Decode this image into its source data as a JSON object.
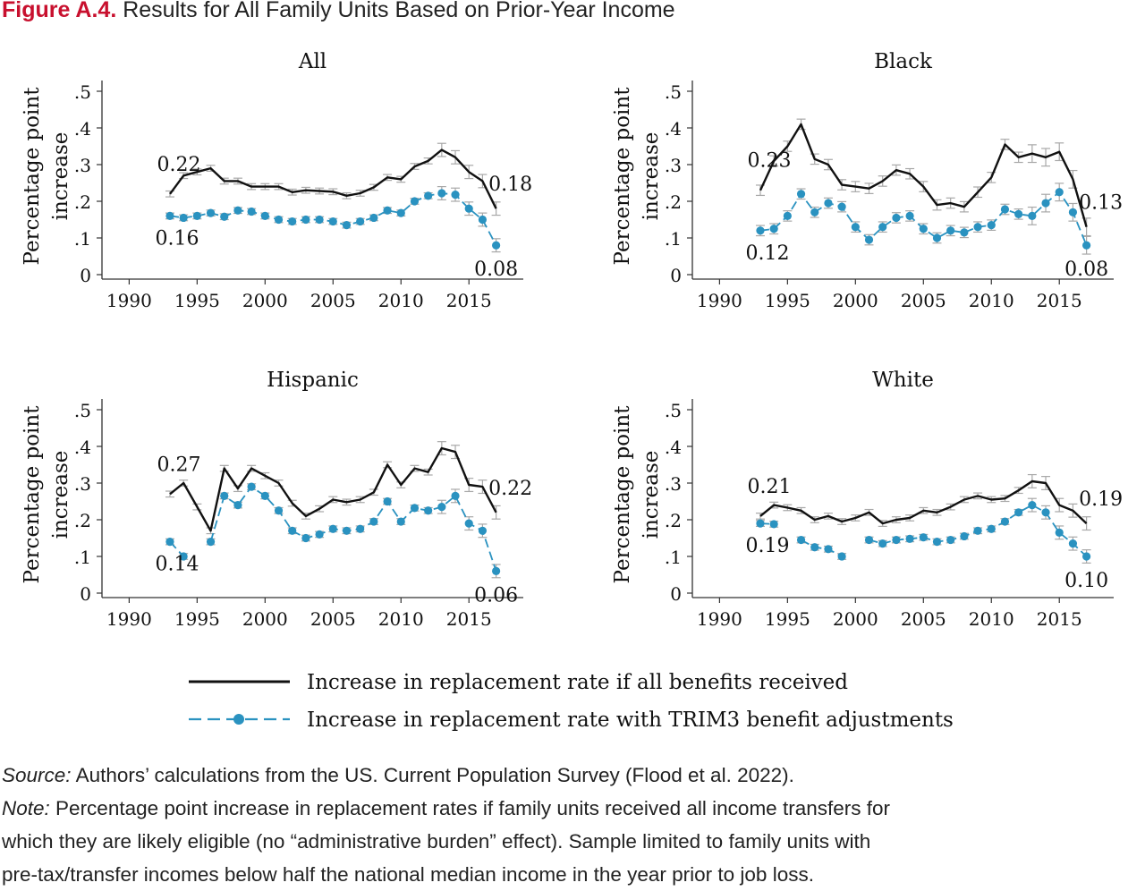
{
  "figure": {
    "label": "Figure A.4.",
    "title": "Results for All Family Units Based on Prior-Year Income"
  },
  "source": {
    "label": "Source:",
    "text": "Authors’ calculations from the US. Current Population Survey (Flood et al. 2022)."
  },
  "note": {
    "label": "Note:",
    "lines": [
      "Percentage point increase in replacement rates if family units received all income transfers for",
      "which they are likely eligible (no “administrative burden” effect). Sample limited to family units with",
      "pre-tax/transfer incomes below half the national median income in the year prior to job loss."
    ]
  },
  "colors": {
    "line_all": "#111111",
    "line_trim3": "#2a92c0",
    "error_bar": "#a8a8a8",
    "accent": "#c8102e"
  },
  "legend": [
    {
      "name": "Increase in replacement rate if all benefits received",
      "style": "solid-black"
    },
    {
      "name": "Increase in replacement rate with TRIM3 benefit adjustments",
      "style": "dashed-blue-dots"
    }
  ],
  "chart_data": [
    {
      "type": "line",
      "title": "All",
      "ylabel": "Percentage point increase",
      "xlabel": "",
      "xlim": [
        1988,
        2019
      ],
      "ylim": [
        0,
        0.5
      ],
      "xticks": [
        "1990",
        "1995",
        "2000",
        "2005",
        "2010",
        "2015"
      ],
      "yticks": [
        "0",
        ".1",
        ".2",
        ".3",
        ".4",
        ".5"
      ],
      "x": [
        1993,
        1994,
        1995,
        1996,
        1997,
        1998,
        1999,
        2000,
        2001,
        2002,
        2003,
        2004,
        2005,
        2006,
        2007,
        2008,
        2009,
        2010,
        2011,
        2012,
        2013,
        2014,
        2015,
        2016,
        2017
      ],
      "series": [
        {
          "values": [
            0.22,
            0.27,
            0.28,
            0.29,
            0.255,
            0.255,
            0.24,
            0.24,
            0.24,
            0.225,
            0.23,
            0.228,
            0.226,
            0.215,
            0.222,
            0.238,
            0.265,
            0.26,
            0.295,
            0.31,
            0.34,
            0.32,
            0.28,
            0.255,
            0.18
          ]
        },
        {
          "values": [
            0.16,
            0.155,
            0.16,
            0.168,
            0.158,
            0.175,
            0.172,
            0.16,
            0.15,
            0.145,
            0.15,
            0.15,
            0.145,
            0.135,
            0.145,
            0.155,
            0.175,
            0.168,
            0.2,
            0.215,
            0.222,
            0.218,
            0.18,
            0.15,
            0.08
          ]
        }
      ],
      "annotations": [
        {
          "text": "0.22",
          "x": 1993,
          "y": 0.22
        },
        {
          "text": "0.16",
          "x": 1993,
          "y": 0.16
        },
        {
          "text": "0.18",
          "x": 2017,
          "y": 0.18
        },
        {
          "text": "0.08",
          "x": 2017,
          "y": 0.08
        }
      ]
    },
    {
      "type": "line",
      "title": "Black",
      "ylabel": "Percentage point increase",
      "xlabel": "",
      "xlim": [
        1988,
        2019
      ],
      "ylim": [
        0,
        0.5
      ],
      "xticks": [
        "1990",
        "1995",
        "2000",
        "2005",
        "2010",
        "2015"
      ],
      "yticks": [
        "0",
        ".1",
        ".2",
        ".3",
        ".4",
        ".5"
      ],
      "x": [
        1993,
        1994,
        1995,
        1996,
        1997,
        1998,
        1999,
        2000,
        2001,
        2002,
        2003,
        2004,
        2005,
        2006,
        2007,
        2008,
        2009,
        2010,
        2011,
        2012,
        2013,
        2014,
        2015,
        2016,
        2017
      ],
      "series": [
        {
          "values": [
            0.23,
            0.31,
            0.35,
            0.41,
            0.315,
            0.3,
            0.245,
            0.24,
            0.235,
            0.255,
            0.285,
            0.275,
            0.24,
            0.19,
            0.195,
            0.185,
            0.225,
            0.265,
            0.355,
            0.32,
            0.33,
            0.32,
            0.335,
            0.26,
            0.13
          ]
        },
        {
          "values": [
            0.12,
            0.125,
            0.16,
            0.22,
            0.17,
            0.195,
            0.185,
            0.13,
            0.095,
            0.13,
            0.155,
            0.16,
            0.125,
            0.1,
            0.12,
            0.115,
            0.13,
            0.135,
            0.178,
            0.165,
            0.16,
            0.195,
            0.225,
            0.17,
            0.08
          ]
        }
      ],
      "annotations": [
        {
          "text": "0.23",
          "x": 1993,
          "y": 0.23
        },
        {
          "text": "0.12",
          "x": 1993,
          "y": 0.12
        },
        {
          "text": "0.13",
          "x": 2017,
          "y": 0.13
        },
        {
          "text": "0.08",
          "x": 2017,
          "y": 0.08
        }
      ]
    },
    {
      "type": "line",
      "title": "Hispanic",
      "ylabel": "Percentage point increase",
      "xlabel": "",
      "xlim": [
        1988,
        2019
      ],
      "ylim": [
        0,
        0.5
      ],
      "xticks": [
        "1990",
        "1995",
        "2000",
        "2005",
        "2010",
        "2015"
      ],
      "yticks": [
        "0",
        ".1",
        ".2",
        ".3",
        ".4",
        ".5"
      ],
      "x": [
        1993,
        1994,
        1995,
        1996,
        1997,
        1998,
        1999,
        2000,
        2001,
        2002,
        2003,
        2004,
        2005,
        2006,
        2007,
        2008,
        2009,
        2010,
        2011,
        2012,
        2013,
        2014,
        2015,
        2016,
        2017
      ],
      "series": [
        {
          "values": [
            0.27,
            0.3,
            0.235,
            0.17,
            0.34,
            0.285,
            0.34,
            0.32,
            0.3,
            0.245,
            0.21,
            0.23,
            0.255,
            0.248,
            0.255,
            0.275,
            0.35,
            0.295,
            0.34,
            0.33,
            0.395,
            0.385,
            0.295,
            0.29,
            0.22
          ]
        },
        {
          "values": [
            0.14,
            0.1,
            null,
            0.14,
            0.265,
            0.24,
            0.29,
            0.265,
            0.225,
            0.17,
            0.15,
            0.16,
            0.175,
            0.17,
            0.175,
            0.195,
            0.25,
            0.195,
            0.232,
            0.225,
            0.235,
            0.265,
            0.19,
            0.17,
            0.06
          ]
        }
      ],
      "annotations": [
        {
          "text": "0.27",
          "x": 1993,
          "y": 0.27
        },
        {
          "text": "0.14",
          "x": 1993,
          "y": 0.14
        },
        {
          "text": "0.22",
          "x": 2017,
          "y": 0.22
        },
        {
          "text": "0.06",
          "x": 2017,
          "y": 0.06
        }
      ]
    },
    {
      "type": "line",
      "title": "White",
      "ylabel": "Percentage point increase",
      "xlabel": "",
      "xlim": [
        1988,
        2019
      ],
      "ylim": [
        0,
        0.5
      ],
      "xticks": [
        "1990",
        "1995",
        "2000",
        "2005",
        "2010",
        "2015"
      ],
      "yticks": [
        "0",
        ".1",
        ".2",
        ".3",
        ".4",
        ".5"
      ],
      "x": [
        1993,
        1994,
        1995,
        1996,
        1997,
        1998,
        1999,
        2000,
        2001,
        2002,
        2003,
        2004,
        2005,
        2006,
        2007,
        2008,
        2009,
        2010,
        2011,
        2012,
        2013,
        2014,
        2015,
        2016,
        2017
      ],
      "series": [
        {
          "values": [
            0.21,
            0.24,
            0.233,
            0.225,
            0.2,
            0.21,
            0.195,
            0.205,
            0.22,
            0.19,
            0.2,
            0.205,
            0.225,
            0.22,
            0.235,
            0.255,
            0.265,
            0.255,
            0.258,
            0.28,
            0.305,
            0.3,
            0.24,
            0.225,
            0.19
          ]
        },
        {
          "values": [
            0.19,
            0.188,
            null,
            0.145,
            0.125,
            0.12,
            0.1,
            null,
            0.145,
            0.135,
            0.145,
            0.148,
            0.152,
            0.14,
            0.145,
            0.155,
            0.17,
            0.175,
            0.195,
            0.22,
            0.24,
            0.22,
            0.165,
            0.135,
            0.1
          ]
        }
      ],
      "annotations": [
        {
          "text": "0.21",
          "x": 1993,
          "y": 0.21
        },
        {
          "text": "0.19",
          "x": 1993,
          "y": 0.19
        },
        {
          "text": "0.19",
          "x": 2017,
          "y": 0.19
        },
        {
          "text": "0.10",
          "x": 2017,
          "y": 0.1
        }
      ]
    }
  ]
}
